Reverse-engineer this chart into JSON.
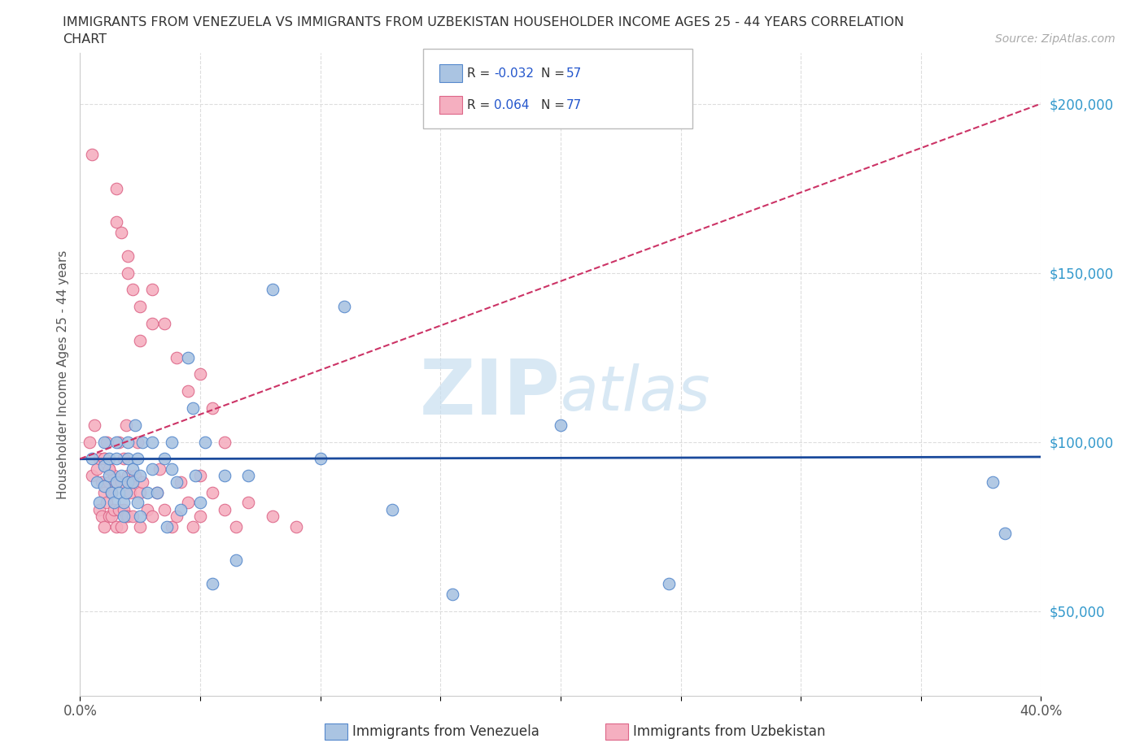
{
  "title_line1": "IMMIGRANTS FROM VENEZUELA VS IMMIGRANTS FROM UZBEKISTAN HOUSEHOLDER INCOME AGES 25 - 44 YEARS CORRELATION",
  "title_line2": "CHART",
  "source": "Source: ZipAtlas.com",
  "ylabel": "Householder Income Ages 25 - 44 years",
  "xlim": [
    0.0,
    0.4
  ],
  "ylim": [
    25000,
    215000
  ],
  "yticks": [
    50000,
    100000,
    150000,
    200000
  ],
  "ytick_labels": [
    "$50,000",
    "$100,000",
    "$150,000",
    "$200,000"
  ],
  "xticks": [
    0.0,
    0.05,
    0.1,
    0.15,
    0.2,
    0.25,
    0.3,
    0.35,
    0.4
  ],
  "venezuela_color": "#aac4e2",
  "uzbekistan_color": "#f5afc0",
  "venezuela_edge_color": "#5588cc",
  "uzbekistan_edge_color": "#dd6688",
  "venezuela_line_color": "#1a4a9c",
  "uzbekistan_line_color": "#cc3366",
  "R_venezuela": -0.032,
  "N_venezuela": 57,
  "R_uzbekistan": 0.064,
  "N_uzbekistan": 77,
  "venezuela_x": [
    0.005,
    0.007,
    0.008,
    0.01,
    0.01,
    0.01,
    0.012,
    0.012,
    0.013,
    0.014,
    0.015,
    0.015,
    0.015,
    0.016,
    0.017,
    0.018,
    0.018,
    0.019,
    0.02,
    0.02,
    0.02,
    0.022,
    0.022,
    0.023,
    0.024,
    0.024,
    0.025,
    0.025,
    0.026,
    0.028,
    0.03,
    0.03,
    0.032,
    0.035,
    0.036,
    0.038,
    0.038,
    0.04,
    0.042,
    0.045,
    0.047,
    0.048,
    0.05,
    0.052,
    0.055,
    0.06,
    0.065,
    0.07,
    0.08,
    0.1,
    0.11,
    0.13,
    0.155,
    0.2,
    0.245,
    0.38,
    0.385
  ],
  "venezuela_y": [
    95000,
    88000,
    82000,
    100000,
    93000,
    87000,
    95000,
    90000,
    85000,
    82000,
    100000,
    95000,
    88000,
    85000,
    90000,
    82000,
    78000,
    85000,
    95000,
    100000,
    88000,
    92000,
    88000,
    105000,
    82000,
    95000,
    90000,
    78000,
    100000,
    85000,
    100000,
    92000,
    85000,
    95000,
    75000,
    100000,
    92000,
    88000,
    80000,
    125000,
    110000,
    90000,
    82000,
    100000,
    58000,
    90000,
    65000,
    90000,
    145000,
    95000,
    140000,
    80000,
    55000,
    105000,
    58000,
    88000,
    73000
  ],
  "uzbekistan_x": [
    0.004,
    0.005,
    0.006,
    0.007,
    0.008,
    0.008,
    0.009,
    0.009,
    0.01,
    0.01,
    0.01,
    0.011,
    0.011,
    0.012,
    0.012,
    0.012,
    0.013,
    0.013,
    0.014,
    0.014,
    0.015,
    0.015,
    0.016,
    0.016,
    0.017,
    0.017,
    0.018,
    0.018,
    0.019,
    0.019,
    0.02,
    0.02,
    0.021,
    0.022,
    0.022,
    0.023,
    0.024,
    0.025,
    0.025,
    0.026,
    0.028,
    0.03,
    0.032,
    0.033,
    0.035,
    0.038,
    0.04,
    0.042,
    0.045,
    0.047,
    0.05,
    0.05,
    0.055,
    0.06,
    0.065,
    0.07,
    0.08,
    0.09,
    0.01,
    0.012,
    0.005,
    0.015,
    0.017,
    0.02,
    0.022,
    0.025,
    0.03,
    0.035,
    0.04,
    0.045,
    0.05,
    0.055,
    0.06,
    0.015,
    0.02,
    0.025,
    0.03
  ],
  "uzbekistan_y": [
    100000,
    90000,
    105000,
    92000,
    80000,
    95000,
    88000,
    78000,
    95000,
    85000,
    75000,
    100000,
    82000,
    92000,
    78000,
    88000,
    85000,
    78000,
    90000,
    80000,
    88000,
    75000,
    100000,
    80000,
    88000,
    75000,
    95000,
    80000,
    105000,
    78000,
    90000,
    78000,
    85000,
    88000,
    78000,
    90000,
    100000,
    85000,
    75000,
    88000,
    80000,
    78000,
    85000,
    92000,
    80000,
    75000,
    78000,
    88000,
    82000,
    75000,
    90000,
    78000,
    85000,
    80000,
    75000,
    82000,
    78000,
    75000,
    95000,
    92000,
    185000,
    175000,
    162000,
    155000,
    145000,
    130000,
    145000,
    135000,
    125000,
    115000,
    120000,
    110000,
    100000,
    165000,
    150000,
    140000,
    135000
  ]
}
